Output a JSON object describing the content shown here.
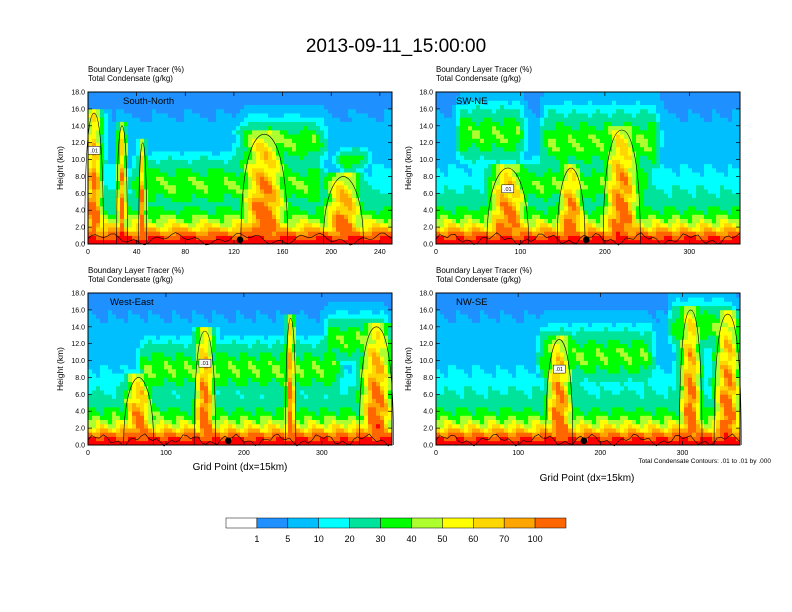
{
  "title": "2013-09-11_15:00:00",
  "xlabel": "Grid Point (dx=15km)",
  "contour_note": "Total Condensate Contours: .01 to .01 by .000",
  "contour_label": ".01",
  "colorbar": {
    "labels": [
      "1",
      "5",
      "10",
      "20",
      "30",
      "40",
      "50",
      "60",
      "70",
      "100"
    ],
    "colors": [
      "#ffffff",
      "#1e90ff",
      "#00bfff",
      "#00ffff",
      "#00e39a",
      "#00ff00",
      "#adff2f",
      "#ffff00",
      "#ffd700",
      "#ffa500",
      "#ff6600",
      "#ff0000"
    ]
  },
  "chart_data": [
    {
      "type": "heatmap",
      "panel_label": "South-North",
      "label_top": "Boundary Layer Tracer    (%)",
      "label_bottom": "Total Condensate    (g/kg)",
      "ylabel": "Height (km)",
      "ylim": [
        0,
        18
      ],
      "yticks": [
        "0.0",
        "2.0",
        "4.0",
        "6.0",
        "8.0",
        "10.0",
        "12.0",
        "14.0",
        "16.0",
        "18.0"
      ],
      "xlim": [
        0,
        250
      ],
      "xticks": [
        0,
        40,
        80,
        120,
        160,
        200,
        240
      ],
      "xlabel": "",
      "plumes": [
        {
          "x": 5,
          "top": 15.5,
          "width": 14
        },
        {
          "x": 28,
          "top": 14.0,
          "width": 8
        },
        {
          "x": 45,
          "top": 12.0,
          "width": 6
        },
        {
          "x": 145,
          "top": 13.0,
          "width": 35
        },
        {
          "x": 210,
          "top": 8.0,
          "width": 30
        }
      ],
      "layers": [
        {
          "x0": 30,
          "x1": 200,
          "z": 7.0,
          "dz": 3.0
        },
        {
          "x0": 120,
          "x1": 200,
          "z": 12.0,
          "dz": 2.5
        },
        {
          "x0": 200,
          "x1": 235,
          "z": 10.0,
          "dz": 1.2
        }
      ],
      "marker_x": 125
    },
    {
      "type": "heatmap",
      "panel_label": "SW-NE",
      "label_top": "Boundary Layer Tracer    (%)",
      "label_bottom": "Total Condensate    (g/kg)",
      "ylabel": "Height (km)",
      "ylim": [
        0,
        18
      ],
      "yticks": [
        "0.0",
        "2.0",
        "4.0",
        "6.0",
        "8.0",
        "10.0",
        "12.0",
        "14.0",
        "16.0",
        "18.0"
      ],
      "xlim": [
        0,
        360
      ],
      "xticks": [
        0,
        100,
        200,
        300
      ],
      "xlabel": "",
      "plumes": [
        {
          "x": 85,
          "top": 9.0,
          "width": 45
        },
        {
          "x": 220,
          "top": 13.5,
          "width": 40
        },
        {
          "x": 160,
          "top": 9.0,
          "width": 30
        }
      ],
      "layers": [
        {
          "x0": 20,
          "x1": 110,
          "z": 13.0,
          "dz": 3.0
        },
        {
          "x0": 120,
          "x1": 270,
          "z": 12.0,
          "dz": 3.5
        },
        {
          "x0": 60,
          "x1": 260,
          "z": 7.0,
          "dz": 2.5
        }
      ],
      "marker_x": 178
    },
    {
      "type": "heatmap",
      "panel_label": "West-East",
      "label_top": "Boundary Layer Tracer    (%)",
      "label_bottom": "Total Condensate    (g/kg)",
      "ylabel": "Height (km)",
      "ylim": [
        0,
        18
      ],
      "yticks": [
        "0.0",
        "2.0",
        "4.0",
        "6.0",
        "8.0",
        "10.0",
        "12.0",
        "14.0",
        "16.0",
        "18.0"
      ],
      "xlim": [
        0,
        390
      ],
      "xticks": [
        0,
        100,
        200,
        300
      ],
      "xlabel": "Grid Point (dx=15km)",
      "plumes": [
        {
          "x": 150,
          "top": 13.5,
          "width": 25
        },
        {
          "x": 65,
          "top": 8.0,
          "width": 35
        },
        {
          "x": 260,
          "top": 15.0,
          "width": 12
        },
        {
          "x": 370,
          "top": 14.0,
          "width": 40
        }
      ],
      "layers": [
        {
          "x0": 60,
          "x1": 330,
          "z": 9.0,
          "dz": 3.0
        },
        {
          "x0": 300,
          "x1": 390,
          "z": 12.5,
          "dz": 2.5
        },
        {
          "x0": 10,
          "x1": 120,
          "z": 3.5,
          "dz": 1.5
        }
      ],
      "marker_x": 180
    },
    {
      "type": "heatmap",
      "panel_label": "NW-SE",
      "label_top": "Boundary Layer Tracer    (%)",
      "label_bottom": "Total Condensate    (g/kg)",
      "ylabel": "Height (km)",
      "ylim": [
        0,
        18
      ],
      "yticks": [
        "0.0",
        "2.0",
        "4.0",
        "6.0",
        "8.0",
        "10.0",
        "12.0",
        "14.0",
        "16.0",
        "18.0"
      ],
      "xlim": [
        0,
        370
      ],
      "xticks": [
        0,
        100,
        200,
        300
      ],
      "xlabel": "Grid Point (dx=15km)",
      "plumes": [
        {
          "x": 150,
          "top": 12.5,
          "width": 30
        },
        {
          "x": 310,
          "top": 16.0,
          "width": 25
        },
        {
          "x": 355,
          "top": 15.5,
          "width": 30
        }
      ],
      "layers": [
        {
          "x0": 120,
          "x1": 270,
          "z": 10.5,
          "dz": 3.0
        },
        {
          "x0": 280,
          "x1": 370,
          "z": 14.0,
          "dz": 2.5
        }
      ],
      "marker_x": 180
    }
  ]
}
